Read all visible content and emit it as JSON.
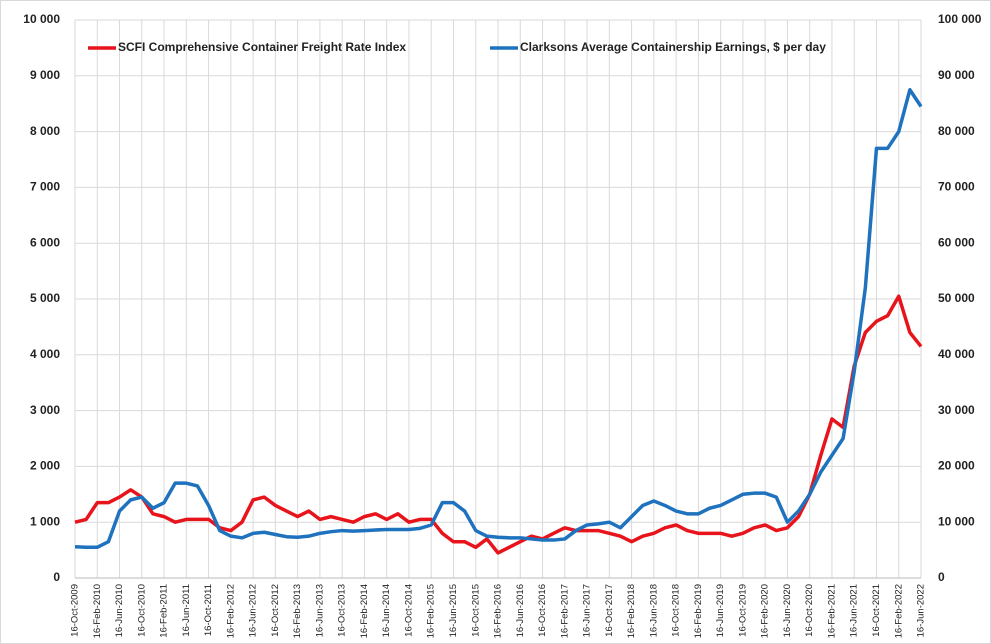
{
  "chart_data": {
    "type": "line",
    "categories": [
      "16-Oct-2009",
      null,
      "16-Feb-2010",
      null,
      "16-Jun-2010",
      null,
      "16-Oct-2010",
      null,
      "16-Feb-2011",
      null,
      "16-Jun-2011",
      null,
      "16-Oct-2011",
      null,
      "16-Feb-2012",
      null,
      "16-Jun-2012",
      null,
      "16-Oct-2012",
      null,
      "16-Feb-2013",
      null,
      "16-Jun-2013",
      null,
      "16-Oct-2013",
      null,
      "16-Feb-2014",
      null,
      "16-Jun-2014",
      null,
      "16-Oct-2014",
      null,
      "16-Feb-2015",
      null,
      "16-Jun-2015",
      null,
      "16-Oct-2015",
      null,
      "16-Feb-2016",
      null,
      "16-Jun-2016",
      null,
      "16-Oct-2016",
      null,
      "16-Feb-2017",
      null,
      "16-Jun-2017",
      null,
      "16-Oct-2017",
      null,
      "16-Feb-2018",
      null,
      "16-Jun-2018",
      null,
      "16-Oct-2018",
      null,
      "16-Feb-2019",
      null,
      "16-Jun-2019",
      null,
      "16-Oct-2019",
      null,
      "16-Feb-2020",
      null,
      "16-Jun-2020",
      null,
      "16-Oct-2020",
      null,
      "16-Feb-2021",
      null,
      "16-Jun-2021",
      null,
      "16-Oct-2021",
      null,
      "16-Feb-2022",
      null,
      "16-Jun-2022"
    ],
    "series": [
      {
        "name": "SCFI Comprehensive Container Freight Rate Index",
        "color": "#e8141b",
        "values": [
          1000,
          1050,
          1350,
          1350,
          1450,
          1580,
          1450,
          1150,
          1100,
          1000,
          1050,
          1050,
          1050,
          900,
          850,
          1000,
          1400,
          1450,
          1300,
          1200,
          1100,
          1200,
          1050,
          1100,
          1050,
          1000,
          1100,
          1150,
          1050,
          1150,
          1000,
          1050,
          1050,
          800,
          650,
          650,
          550,
          700,
          450,
          550,
          650,
          750,
          700,
          800,
          900,
          850,
          850,
          850,
          800,
          750,
          650,
          750,
          800,
          900,
          950,
          850,
          800,
          800,
          800,
          750,
          800,
          900,
          950,
          850,
          900,
          1100,
          1500,
          2200,
          2850,
          2700,
          3800,
          4400,
          4600,
          4700,
          5050,
          4400,
          4150
        ]
      },
      {
        "name": "Clarksons Average Containership Earnings, $ per day",
        "color": "#1f72be",
        "axis": "y2",
        "values": [
          5600,
          5500,
          5500,
          6500,
          12000,
          14000,
          14500,
          12500,
          13500,
          17000,
          17000,
          16500,
          13000,
          8500,
          7500,
          7200,
          8000,
          8200,
          7800,
          7400,
          7300,
          7500,
          8000,
          8300,
          8500,
          8400,
          8500,
          8600,
          8700,
          8700,
          8700,
          8900,
          9500,
          13500,
          13500,
          12000,
          8500,
          7500,
          7300,
          7200,
          7200,
          7000,
          6800,
          6800,
          7000,
          8500,
          9500,
          9700,
          10000,
          9000,
          11000,
          13000,
          13800,
          13000,
          12000,
          11500,
          11500,
          12500,
          13000,
          14000,
          15000,
          15200,
          15200,
          14500,
          10000,
          12000,
          15000,
          19000,
          22000,
          25000,
          37000,
          52000,
          77000,
          77000,
          80000,
          87500,
          84500
        ]
      }
    ],
    "ylim": [
      0,
      10000
    ],
    "yticks": [
      0,
      {
        "value": 1000,
        "label": "1 000"
      },
      {
        "value": 2000,
        "label": "2 000"
      },
      {
        "value": 3000,
        "label": "3 000"
      },
      {
        "value": 4000,
        "label": "4 000"
      },
      {
        "value": 5000,
        "label": "5 000"
      },
      {
        "value": 6000,
        "label": "6 000"
      },
      {
        "value": 7000,
        "label": "7 000"
      },
      {
        "value": 8000,
        "label": "8 000"
      },
      {
        "value": 9000,
        "label": "9 000"
      },
      {
        "value": 10000,
        "label": "10 000"
      }
    ],
    "y2lim": [
      0,
      100000
    ],
    "y2ticks": [
      0,
      {
        "value": 10000,
        "label": "10 000"
      },
      {
        "value": 20000,
        "label": "20 000"
      },
      {
        "value": 30000,
        "label": "30 000"
      },
      {
        "value": 40000,
        "label": "40 000"
      },
      {
        "value": 50000,
        "label": "50 000"
      },
      {
        "value": 60000,
        "label": "60 000"
      },
      {
        "value": 70000,
        "label": "70 000"
      },
      {
        "value": 80000,
        "label": "80 000"
      },
      {
        "value": 90000,
        "label": "90 000"
      },
      {
        "value": 100000,
        "label": "100 000"
      }
    ],
    "grid": true,
    "legend": "top"
  }
}
